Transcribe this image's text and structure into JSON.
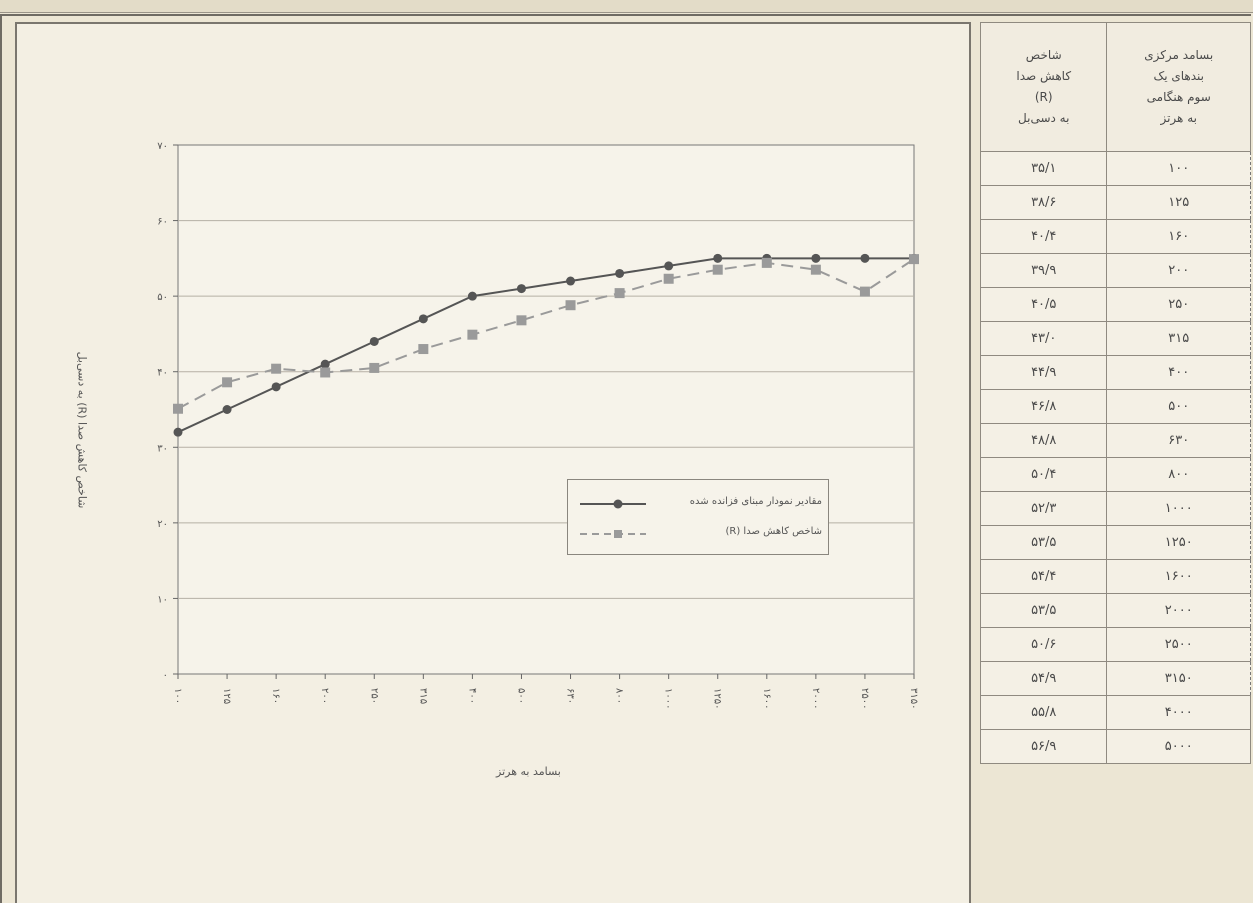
{
  "table": {
    "headers": {
      "r_index": "شاخص\nکاهش صدا\n(R)\nبه دسی‌بل",
      "frequency": "بسامد مرکزی\nبندهای یک\nسوم هنگامی\nبه هرتز"
    },
    "rows": [
      {
        "frequency": "۱۰۰",
        "r": "۳۵/۱"
      },
      {
        "frequency": "۱۲۵",
        "r": "۳۸/۶"
      },
      {
        "frequency": "۱۶۰",
        "r": "۴۰/۴"
      },
      {
        "frequency": "۲۰۰",
        "r": "۳۹/۹"
      },
      {
        "frequency": "۲۵۰",
        "r": "۴۰/۵"
      },
      {
        "frequency": "۳۱۵",
        "r": "۴۳/۰"
      },
      {
        "frequency": "۴۰۰",
        "r": "۴۴/۹"
      },
      {
        "frequency": "۵۰۰",
        "r": "۴۶/۸"
      },
      {
        "frequency": "۶۳۰",
        "r": "۴۸/۸"
      },
      {
        "frequency": "۸۰۰",
        "r": "۵۰/۴"
      },
      {
        "frequency": "۱۰۰۰",
        "r": "۵۲/۳"
      },
      {
        "frequency": "۱۲۵۰",
        "r": "۵۳/۵"
      },
      {
        "frequency": "۱۶۰۰",
        "r": "۵۴/۴"
      },
      {
        "frequency": "۲۰۰۰",
        "r": "۵۳/۵"
      },
      {
        "frequency": "۲۵۰۰",
        "r": "۵۰/۶"
      },
      {
        "frequency": "۳۱۵۰",
        "r": "۵۴/۹"
      },
      {
        "frequency": "۴۰۰۰",
        "r": "۵۵/۸"
      },
      {
        "frequency": "۵۰۰۰",
        "r": "۵۶/۹"
      }
    ]
  },
  "chart_data": {
    "type": "line",
    "xlabel": "بسامد به هرتز",
    "ylabel": "شاخص کاهش صدا (R) به دسی‌بل",
    "ylim": [
      0,
      70
    ],
    "yticks": [
      0,
      10,
      20,
      30,
      40,
      50,
      60,
      70
    ],
    "ytick_labels": [
      "۰",
      "۱۰",
      "۲۰",
      "۳۰",
      "۴۰",
      "۵۰",
      "۶۰",
      "۷۰"
    ],
    "categories": [
      "۱۰۰",
      "۱۲۵",
      "۱۶۰",
      "۲۰۰",
      "۲۵۰",
      "۳۱۵",
      "۴۰۰",
      "۵۰۰",
      "۶۳۰",
      "۸۰۰",
      "۱۰۰۰",
      "۱۲۵۰",
      "۱۶۰۰",
      "۲۰۰۰",
      "۲۵۰۰",
      "۳۱۵۰"
    ],
    "grid": "horizontal",
    "legend_position": "center-right",
    "series": [
      {
        "name": "مقادیر نمودار مبنای فزانده شده",
        "marker": "circle",
        "style": "solid",
        "color": "#555555",
        "values": [
          32.0,
          35.0,
          38.0,
          41.0,
          44.0,
          47.0,
          50.0,
          51.0,
          52.0,
          53.0,
          54.0,
          55.0,
          55.0,
          55.0,
          55.0,
          55.0
        ]
      },
      {
        "name": "شاخص کاهش صدا (R)",
        "marker": "square",
        "style": "dashed",
        "color": "#9a9a9a",
        "values": [
          35.1,
          38.6,
          40.4,
          39.9,
          40.5,
          43.0,
          44.9,
          46.8,
          48.8,
          50.4,
          52.3,
          53.5,
          54.4,
          53.5,
          50.6,
          54.9
        ]
      }
    ]
  }
}
